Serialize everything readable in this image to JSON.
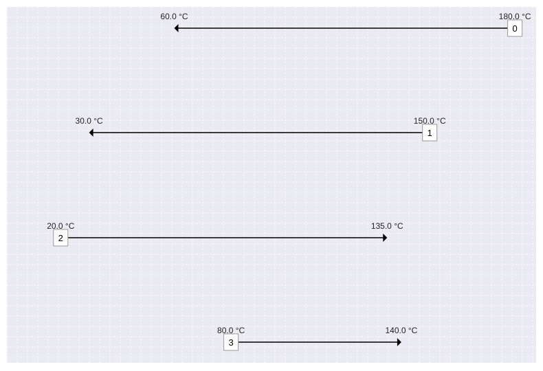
{
  "diagram": {
    "unit": "°C",
    "colors": {
      "background": "#eaeaf2",
      "grid": "#ffffff",
      "arrow": "#000000",
      "box_fill": "#ffffff",
      "box_stroke": "#999999"
    },
    "streams": [
      {
        "id": "0",
        "start_label": "180.0 °C",
        "end_label": "60.0 °C",
        "t_start": 180.0,
        "t_end": 60.0
      },
      {
        "id": "1",
        "start_label": "150.0 °C",
        "end_label": "30.0 °C",
        "t_start": 150.0,
        "t_end": 30.0
      },
      {
        "id": "2",
        "start_label": "20.0 °C",
        "end_label": "135.0 °C",
        "t_start": 20.0,
        "t_end": 135.0
      },
      {
        "id": "3",
        "start_label": "80.0 °C",
        "end_label": "140.0 °C",
        "t_start": 80.0,
        "t_end": 140.0
      }
    ]
  }
}
